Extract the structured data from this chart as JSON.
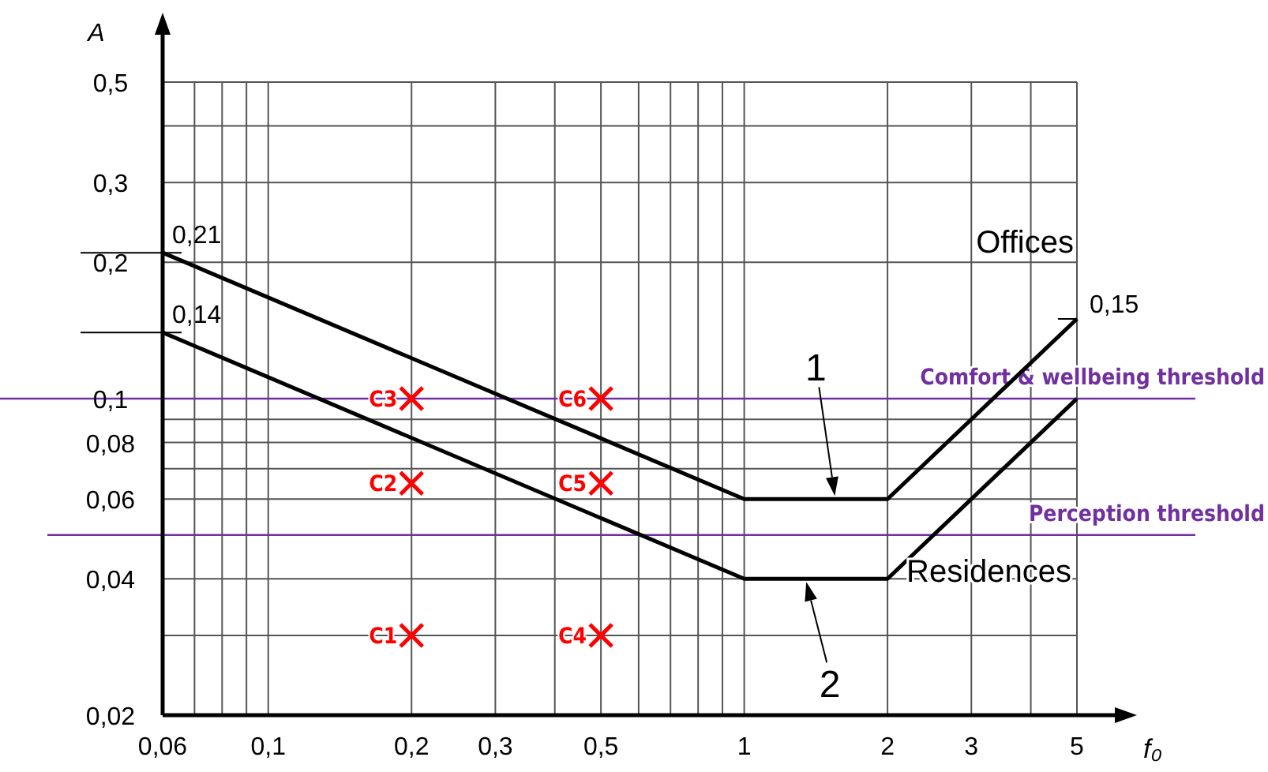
{
  "chart_data": {
    "type": "line",
    "xlabel": "f₀",
    "ylabel": "A",
    "log": "xy",
    "grid": true,
    "xlim": [
      0.06,
      5
    ],
    "ylim": [
      0.02,
      0.5
    ],
    "xticks": [
      {
        "value": 0.06,
        "label": "0,06"
      },
      {
        "value": 0.07,
        "label": null
      },
      {
        "value": 0.08,
        "label": null
      },
      {
        "value": 0.09,
        "label": null
      },
      {
        "value": 0.1,
        "label": "0,1"
      },
      {
        "value": 0.2,
        "label": "0,2"
      },
      {
        "value": 0.3,
        "label": "0,3"
      },
      {
        "value": 0.4,
        "label": null
      },
      {
        "value": 0.5,
        "label": "0,5"
      },
      {
        "value": 0.6,
        "label": null
      },
      {
        "value": 0.7,
        "label": null
      },
      {
        "value": 0.8,
        "label": null
      },
      {
        "value": 0.9,
        "label": null
      },
      1,
      2,
      3,
      {
        "value": 4,
        "label": null
      },
      5
    ],
    "yticks": [
      {
        "value": 0.02,
        "label": "0,02"
      },
      {
        "value": 0.03,
        "label": null
      },
      {
        "value": 0.04,
        "label": "0,04"
      },
      {
        "value": 0.06,
        "label": "0,06"
      },
      {
        "value": 0.07,
        "label": null
      },
      {
        "value": 0.08,
        "label": "0,08"
      },
      {
        "value": 0.09,
        "label": null
      },
      {
        "value": 0.1,
        "label": "0,1"
      },
      {
        "value": 0.2,
        "label": "0,2"
      },
      {
        "value": 0.3,
        "label": "0,3"
      },
      {
        "value": 0.4,
        "label": null
      },
      {
        "value": 0.5,
        "label": "0,5"
      }
    ],
    "series": [
      {
        "name": "Offices",
        "color": "#000000",
        "x": [
          0.06,
          1,
          2,
          5
        ],
        "values": [
          0.21,
          0.06,
          0.06,
          0.15
        ],
        "value_labels": [
          "0,21",
          null,
          null,
          "0,15"
        ]
      },
      {
        "name": "Residences",
        "color": "#000000",
        "x": [
          0.06,
          1,
          2,
          5
        ],
        "values": [
          0.14,
          0.04,
          0.04,
          0.1
        ],
        "value_labels": [
          "0,14",
          null,
          null,
          null
        ]
      },
      {
        "type": "scatter",
        "marker": "cross",
        "color": "#ff0000",
        "x": [
          0.2,
          0.2,
          0.2,
          0.5,
          0.5,
          0.5
        ],
        "values": [
          0.03,
          0.065,
          0.1,
          0.03,
          0.065,
          0.1
        ],
        "value_labels": [
          "C1",
          "C2",
          "C3",
          "C4",
          "C5",
          "C6"
        ]
      }
    ],
    "ref_lines": [
      {
        "axis": "y",
        "value": 0.1,
        "label": "Comfort & wellbeing threshold",
        "color": "#7030a0"
      },
      {
        "axis": "y",
        "value": 0.05,
        "label": "Perception threshold",
        "color": "#7030a0"
      }
    ],
    "annotations": [
      {
        "text": "1",
        "x": 1.55,
        "y": 0.06
      },
      {
        "text": "2",
        "x": 1.35,
        "y": 0.04
      }
    ]
  }
}
